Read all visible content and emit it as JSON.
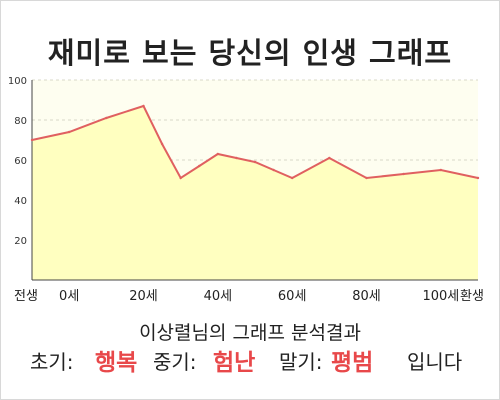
{
  "title": "재미로 보는 당신의 인생 그래프",
  "subtitle": "이상렬님의 그래프 분석결과",
  "summary": {
    "early_label": "초기:",
    "early_value": "행복",
    "mid_label": "중기:",
    "mid_value": "험난",
    "late_label": "말기:",
    "late_value": "평범",
    "ending": "입니다",
    "highlight_color": "#e8484a"
  },
  "chart_data": {
    "type": "area",
    "title": "재미로 보는 당신의 인생 그래프",
    "xlabel": "",
    "ylabel": "",
    "ylim": [
      0,
      100
    ],
    "yticks": [
      20,
      40,
      60,
      80,
      100
    ],
    "xticks": [
      {
        "x": -10,
        "label": "전생"
      },
      {
        "x": 0,
        "label": "0세"
      },
      {
        "x": 20,
        "label": "20세"
      },
      {
        "x": 40,
        "label": "40세"
      },
      {
        "x": 60,
        "label": "60세"
      },
      {
        "x": 80,
        "label": "80세"
      },
      {
        "x": 100,
        "label": "100세"
      },
      {
        "x": 110,
        "label": "환생"
      }
    ],
    "xlim": [
      -10,
      110
    ],
    "x": [
      -10,
      0,
      10,
      20,
      25,
      30,
      35,
      40,
      45,
      50,
      55,
      60,
      70,
      80,
      90,
      100,
      110
    ],
    "values": [
      70,
      74,
      81,
      87,
      68,
      51,
      57,
      63,
      61,
      59,
      55,
      51,
      61,
      51,
      53,
      55,
      51
    ],
    "grid": true,
    "line_color": "#e06060",
    "fill_color": "#ffffc0",
    "plot_background": "#fefef0"
  }
}
